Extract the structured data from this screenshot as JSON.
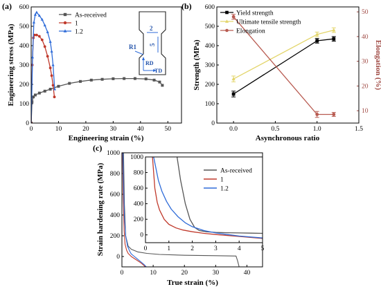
{
  "colors": {
    "as_received": "#555555",
    "r1": "#c0392b",
    "r12": "#2e6bd8",
    "yield": "#000000",
    "uts": "#e3d56a",
    "elong": "#b85a50",
    "inc": "#2e6bd8",
    "inc_text": "#1f4fa8",
    "axis_right": "#a04a44"
  },
  "chart_data": [
    {
      "id": "a",
      "type": "line",
      "panel_label": "(a)",
      "xlabel": "Engineering strain (%)",
      "ylabel": "Engineering stress (MPa)",
      "xlim": [
        0,
        55
      ],
      "ylim": [
        0,
        600
      ],
      "xticks": [
        0,
        10,
        20,
        30,
        40,
        50
      ],
      "yticks": [
        0,
        100,
        200,
        300,
        400,
        500,
        600
      ],
      "legend": "top-right",
      "series": [
        {
          "name": "As-received",
          "marker": "square",
          "x": [
            0,
            0.3,
            0.8,
            1.5,
            3,
            5,
            7,
            10,
            14,
            18,
            22,
            26,
            30,
            34,
            38,
            42,
            45,
            47,
            48
          ],
          "y": [
            0,
            110,
            135,
            145,
            155,
            165,
            175,
            190,
            205,
            215,
            222,
            226,
            229,
            230,
            230,
            228,
            222,
            212,
            195
          ]
        },
        {
          "name": "1",
          "marker": "circle",
          "x": [
            0,
            0.4,
            0.8,
            1.2,
            2,
            3,
            4,
            5,
            6,
            7,
            7.5,
            8,
            8.5
          ],
          "y": [
            0,
            300,
            440,
            455,
            455,
            448,
            430,
            395,
            345,
            285,
            245,
            195,
            135
          ]
        },
        {
          "name": "1.2",
          "marker": "triangle",
          "x": [
            0,
            0.5,
            1,
            1.5,
            2,
            3,
            4,
            5,
            6,
            7,
            7.5,
            8,
            8.6
          ],
          "y": [
            0,
            340,
            520,
            560,
            572,
            555,
            535,
            505,
            470,
            420,
            370,
            300,
            175
          ]
        }
      ],
      "inset": {
        "labels": [
          "2",
          "R1",
          "RD",
          "TD"
        ],
        "length_label": "5"
      }
    },
    {
      "id": "b",
      "type": "line",
      "panel_label": "(b)",
      "xlabel": "Asynchronous ratio",
      "ylabel": "Strength (MPa)",
      "ylabel_right": "Elongation (%)",
      "xlim": [
        -0.2,
        1.5
      ],
      "ylim": [
        0,
        600
      ],
      "ylim_right": [
        5,
        52
      ],
      "xticks": [
        0.0,
        0.5,
        1.0,
        1.5
      ],
      "yticks": [
        0,
        100,
        200,
        300,
        400,
        500,
        600
      ],
      "yticks_right": [
        10,
        20,
        30,
        40,
        50
      ],
      "legend": "top-left",
      "x": [
        0,
        1,
        1.2
      ],
      "series": [
        {
          "name": "Yield strength",
          "axis": "left",
          "values": [
            150,
            425,
            435
          ],
          "errors": [
            15,
            12,
            12
          ]
        },
        {
          "name": "Ultimate tensile strength",
          "axis": "left",
          "values": [
            228,
            458,
            480
          ],
          "errors": [
            15,
            12,
            12
          ]
        },
        {
          "name": "Elongation",
          "axis": "right",
          "values": [
            48,
            8.5,
            8.5
          ],
          "errors": [
            1,
            1.2,
            0.8
          ]
        }
      ]
    },
    {
      "id": "c",
      "type": "line",
      "panel_label": "(c)",
      "xlabel": "True strain (%)",
      "ylabel": "Strain hardening rate (MPa)",
      "xlim": [
        0,
        45
      ],
      "ylim": [
        -100,
        1000
      ],
      "xticks": [
        0,
        10,
        20,
        30,
        40
      ],
      "yticks": [
        0,
        200,
        400,
        600,
        800,
        1000
      ],
      "legend": "top-right",
      "series": [
        {
          "name": "As-received",
          "x": [
            0.5,
            0.8,
            1.2,
            2,
            3,
            5,
            8,
            12,
            20,
            30,
            36.5,
            37,
            37.5
          ],
          "y": [
            1000,
            500,
            200,
            100,
            70,
            45,
            30,
            20,
            12,
            8,
            5,
            -40,
            -100
          ]
        },
        {
          "name": "1",
          "x": [
            0.2,
            0.4,
            0.7,
            1,
            1.5,
            2,
            3,
            4,
            5,
            6,
            7,
            7.5
          ],
          "y": [
            1000,
            600,
            250,
            120,
            60,
            30,
            0,
            -20,
            -40,
            -60,
            -85,
            -100
          ]
        },
        {
          "name": "1.2",
          "x": [
            0.3,
            0.5,
            0.8,
            1.2,
            1.8,
            2.5,
            3,
            4,
            5,
            6,
            7,
            7.8
          ],
          "y": [
            1000,
            700,
            380,
            200,
            100,
            50,
            25,
            0,
            -25,
            -50,
            -75,
            -100
          ]
        }
      ],
      "inset": {
        "xlim": [
          0,
          5
        ],
        "ylim": [
          -100,
          1000
        ],
        "xticks": [
          0,
          1,
          2,
          3,
          4,
          5
        ],
        "yticks": [
          0,
          200,
          400,
          600,
          800,
          1000
        ],
        "series": [
          {
            "name": "As-received",
            "x": [
              1.35,
              1.5,
              1.7,
              1.9,
              2.1,
              2.3,
              2.6,
              3,
              3.5,
              4,
              4.5,
              5
            ],
            "y": [
              1000,
              700,
              400,
              200,
              95,
              55,
              40,
              32,
              28,
              25,
              22,
              20
            ]
          },
          {
            "name": "1",
            "x": [
              0.3,
              0.35,
              0.4,
              0.5,
              0.6,
              0.8,
              1,
              1.3,
              1.6,
              2,
              2.5,
              3,
              4,
              5
            ],
            "y": [
              1000,
              800,
              600,
              420,
              320,
              200,
              135,
              90,
              62,
              40,
              20,
              5,
              -20,
              -45
            ]
          },
          {
            "name": "1.2",
            "x": [
              0.35,
              0.45,
              0.55,
              0.7,
              0.9,
              1.1,
              1.4,
              1.7,
              2,
              2.5,
              3,
              3.5,
              4,
              5
            ],
            "y": [
              1000,
              850,
              700,
              560,
              430,
              330,
              230,
              155,
              105,
              55,
              25,
              5,
              -15,
              -40
            ]
          }
        ]
      }
    }
  ]
}
